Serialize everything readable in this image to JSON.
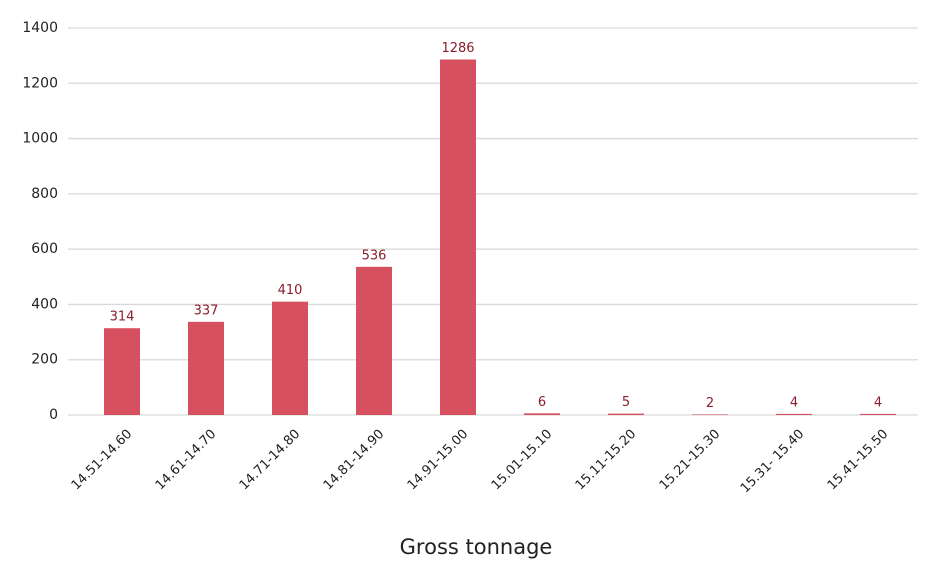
{
  "chart_data": {
    "type": "bar",
    "x_label": "Gross tonnage",
    "categories": [
      "14.51-14.60",
      "14.61-14.70",
      "14.71-14.80",
      "14.81-14.90",
      "14.91-15.00",
      "15.01-15.10",
      "15.11-15.20",
      "15.21-15.30",
      "15.31- 15.40",
      "15.41-15.50"
    ],
    "values": [
      314,
      337,
      410,
      536,
      1286,
      6,
      5,
      2,
      4,
      4
    ],
    "color": "#d6505f",
    "ylim": [
      0,
      1400
    ],
    "yticks": [
      0,
      200,
      400,
      600,
      800,
      1000,
      1200,
      1400
    ],
    "grid": true
  }
}
